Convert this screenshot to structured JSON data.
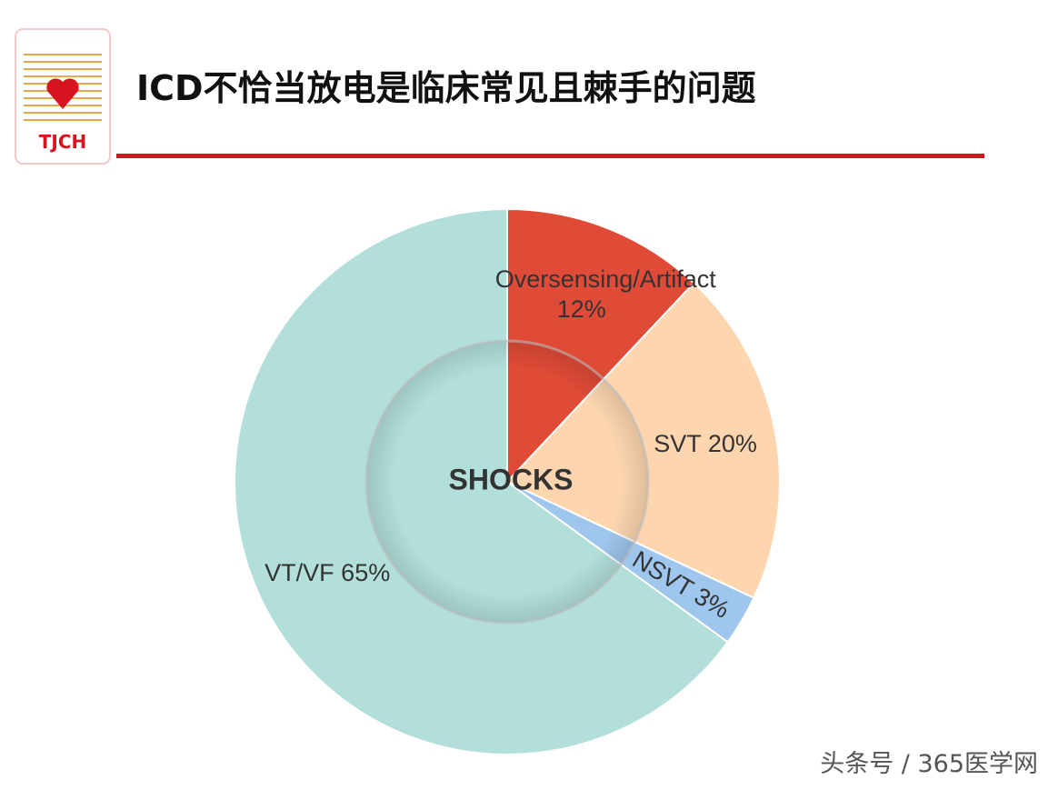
{
  "header": {
    "title": "ICD不恰当放电是临床常见且棘手的问题",
    "logo_text": "TJCH"
  },
  "watermark": "头条号 / 365医学网",
  "chart_data": {
    "type": "pie",
    "center_label": "SHOCKS",
    "categories": [
      "Oversensing/Artifact",
      "SVT",
      "NSVT",
      "VT/VF"
    ],
    "values": [
      12,
      20,
      3,
      65
    ],
    "value_labels": [
      "12%",
      "20%",
      "3%",
      "65%"
    ],
    "colors": [
      "#e04b37",
      "#fdd6b0",
      "#9fc6ec",
      "#b2dfda"
    ]
  }
}
